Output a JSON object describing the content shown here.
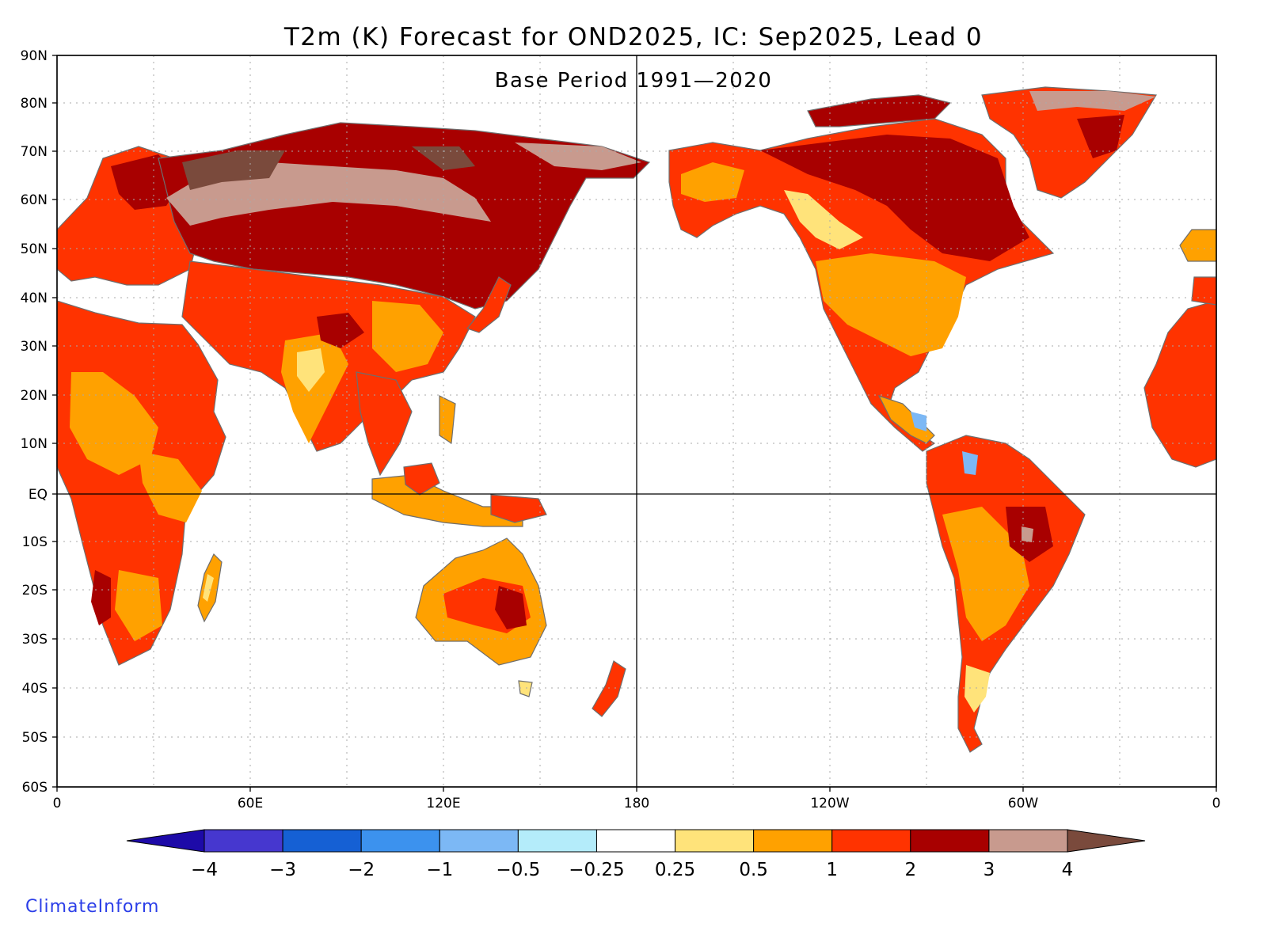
{
  "title": "T2m (K) Forecast for OND2025, IC: Sep2025, Lead 0",
  "subtitle": "Base Period 1991—2020",
  "credit": "ClimateInform",
  "lat_ticks": [
    "90N",
    "80N",
    "70N",
    "60N",
    "50N",
    "40N",
    "30N",
    "20N",
    "10N",
    "EQ",
    "10S",
    "20S",
    "30S",
    "40S",
    "50S",
    "60S"
  ],
  "lon_ticks": [
    "0",
    "60E",
    "120E",
    "180",
    "120W",
    "60W",
    "0"
  ],
  "colorbar": {
    "labels": [
      "−4",
      "−3",
      "−2",
      "−1",
      "−0.5",
      "−0.25",
      "0.25",
      "0.5",
      "1",
      "2",
      "3",
      "4"
    ],
    "colors": [
      "#1d0aa8",
      "#4637cf",
      "#1560d4",
      "#3c92ee",
      "#7cb8f5",
      "#b4ecfa",
      "#ffffff",
      "#ffe37a",
      "#ffa100",
      "#ff3300",
      "#a80000",
      "#c89a8e",
      "#7a4a3c"
    ]
  },
  "colors": {
    "land_warm_1_2": "#ff3300",
    "land_warm_05_1": "#ffa100",
    "land_warm_3_4": "#c89a8e",
    "land_warm_2_3": "#a80000",
    "land_warm_gt4": "#7a4a3c",
    "land_warm_025_05": "#ffe37a",
    "land_cool": "#7cb8f5",
    "coastline": "#6e6e6e"
  }
}
